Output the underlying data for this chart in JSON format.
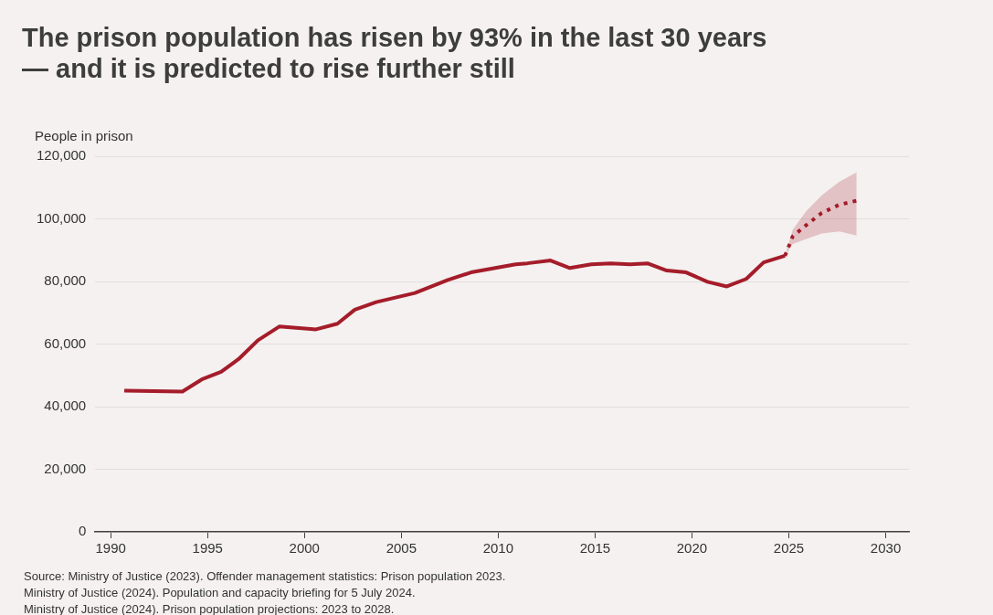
{
  "chart_data": {
    "type": "line",
    "title": "The prison population has risen by 93% in the last 30 years\n— and it is predicted to rise further still",
    "ylabel": "People in prison",
    "xlim": [
      1989.2,
      2031.2
    ],
    "xticks": [
      1990,
      1995,
      2000,
      2005,
      2010,
      2015,
      2020,
      2025,
      2030
    ],
    "ylim": [
      0,
      120000
    ],
    "yticks": [
      {
        "value": 0,
        "label": "0"
      },
      {
        "value": 20000,
        "label": "20,000"
      },
      {
        "value": 40000,
        "label": "40,000"
      },
      {
        "value": 60000,
        "label": "60,000"
      },
      {
        "value": 80000,
        "label": "80,000"
      },
      {
        "value": 100000,
        "label": "100,000"
      },
      {
        "value": 120000,
        "label": "120,000"
      }
    ],
    "grid": "y",
    "legend": false,
    "marker": "none",
    "series": [
      {
        "color": "#a51c2a",
        "line_style": "solid",
        "x": [
          1990.7,
          1993.7,
          1994.7,
          1995.7,
          1996.6,
          1997.6,
          1998.7,
          2000.6,
          2001.7,
          2002.6,
          2003.7,
          2005.7,
          2007.4,
          2008.6,
          2010.9,
          2011.5,
          2012.7,
          2013.7,
          2014.8,
          2015.8,
          2016.8,
          2017.7,
          2018.7,
          2019.7,
          2020.8,
          2021.8,
          2022.8,
          2023.7,
          2024.8
        ],
        "values": [
          45100,
          44800,
          48700,
          51100,
          55200,
          61200,
          65600,
          64700,
          66500,
          71000,
          73400,
          76300,
          80500,
          82900,
          85500,
          85800,
          86700,
          84300,
          85500,
          85800,
          85500,
          85800,
          83500,
          82900,
          79900,
          78400,
          80800,
          86100,
          88200
        ]
      },
      {
        "color": "#a51c2a",
        "line_style": "dotted",
        "x": [
          2024.8,
          2025.2,
          2025.9,
          2026.7,
          2027.6,
          2028.5
        ],
        "values": [
          88200,
          94400,
          98000,
          101900,
          104500,
          105800
        ],
        "lower": [
          88200,
          92000,
          93600,
          95300,
          96000,
          94700
        ],
        "upper": [
          88200,
          96500,
          102500,
          107500,
          111800,
          114900
        ]
      }
    ],
    "annotations": [
      "Source: Ministry of Justice (2023). Offender management statistics: Prison population 2023.",
      "Ministry of Justice (2024). Population and capacity briefing for 5 July 2024.",
      "Ministry of Justice (2024). Prison population projections: 2023 to 2028."
    ]
  }
}
